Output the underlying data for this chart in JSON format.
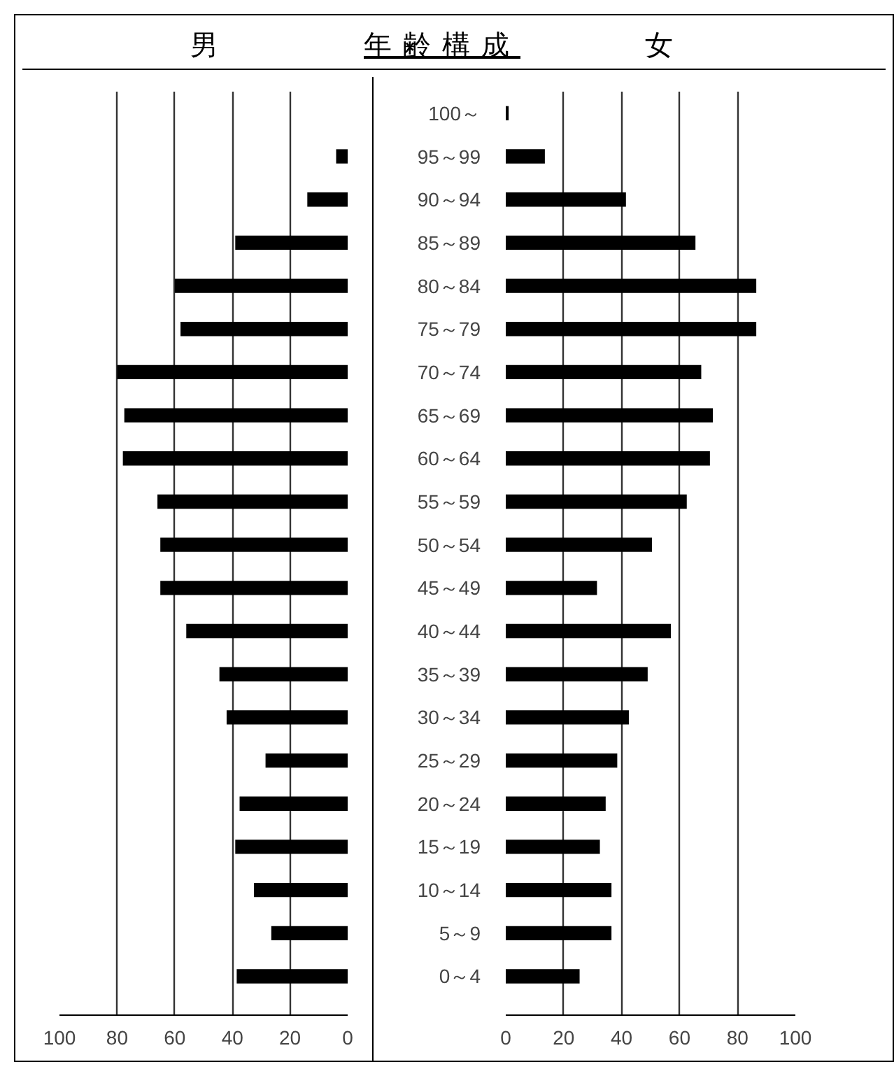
{
  "chart_data": [
    {
      "type": "bar",
      "orientation": "horizontal",
      "title": "男",
      "annotations": [
        "年齢構成"
      ],
      "categories": [
        null,
        null,
        null,
        null,
        null,
        null,
        null,
        null,
        null,
        null,
        null,
        null,
        null,
        null,
        null,
        null,
        null,
        null,
        null,
        null,
        null
      ],
      "values": [
        0,
        4,
        14,
        39,
        60,
        58,
        80,
        77.5,
        78,
        66,
        65,
        65,
        56,
        44.5,
        42,
        28.5,
        37.5,
        39,
        32.5,
        26.5,
        38.5
      ],
      "color": "#000000",
      "xlim": [
        100,
        0
      ],
      "xticks": [
        100,
        80,
        60,
        40,
        20,
        0
      ],
      "grid": "x",
      "tick_labels": "x"
    },
    {
      "type": "bar",
      "orientation": "horizontal",
      "title": "女",
      "categories": [
        "100～",
        "95～99",
        "90～94",
        "85～89",
        "80～84",
        "75～79",
        "70～74",
        "65～69",
        "60～64",
        "55～59",
        "50～54",
        "45～49",
        "40～44",
        "35～39",
        "30～34",
        "25～29",
        "20～24",
        "15～19",
        "10～14",
        "5～9",
        "0～4"
      ],
      "values": [
        1,
        13.5,
        41.5,
        65.5,
        86.5,
        86.5,
        67.5,
        71.5,
        70.5,
        62.5,
        50.5,
        31.5,
        57,
        49,
        42.5,
        38.5,
        34.5,
        32.5,
        36.5,
        36.5,
        25.5
      ],
      "color": "#000000",
      "xlim": [
        0,
        100
      ],
      "xticks": [
        0,
        20,
        40,
        60,
        80,
        100
      ],
      "grid": "x"
    }
  ]
}
